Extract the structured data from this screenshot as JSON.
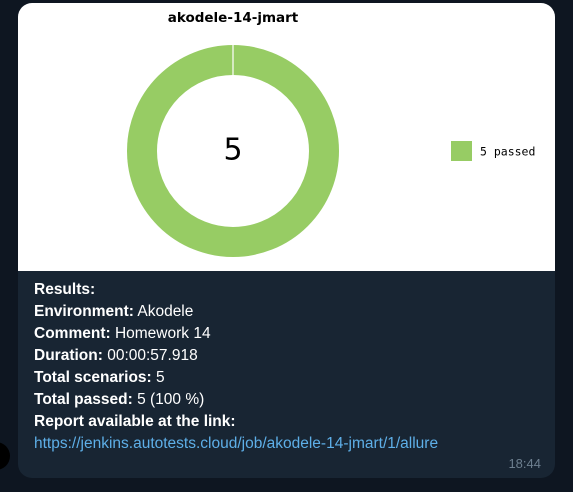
{
  "message": {
    "time": "18:44",
    "caption": {
      "header": "Results:",
      "environment_label": "Environment:",
      "environment_value": "Akodele",
      "comment_label": "Comment:",
      "comment_value": "Homework 14",
      "duration_label": "Duration:",
      "duration_value": "00:00:57.918",
      "scenarios_label": "Total scenarios:",
      "scenarios_value": "5",
      "passed_label": "Total passed:",
      "passed_value": "5 (100 %)",
      "report_label": "Report available at the link:",
      "report_url": "https://jenkins.autotests.cloud/job/akodele-14-jmart/1/allure"
    }
  },
  "chart_data": {
    "type": "pie",
    "title": "akodele-14-jmart",
    "center_label": "5",
    "slices": [
      {
        "label": "5 passed",
        "value": 5,
        "color": "#97cc64"
      }
    ],
    "legend_position": "right"
  }
}
